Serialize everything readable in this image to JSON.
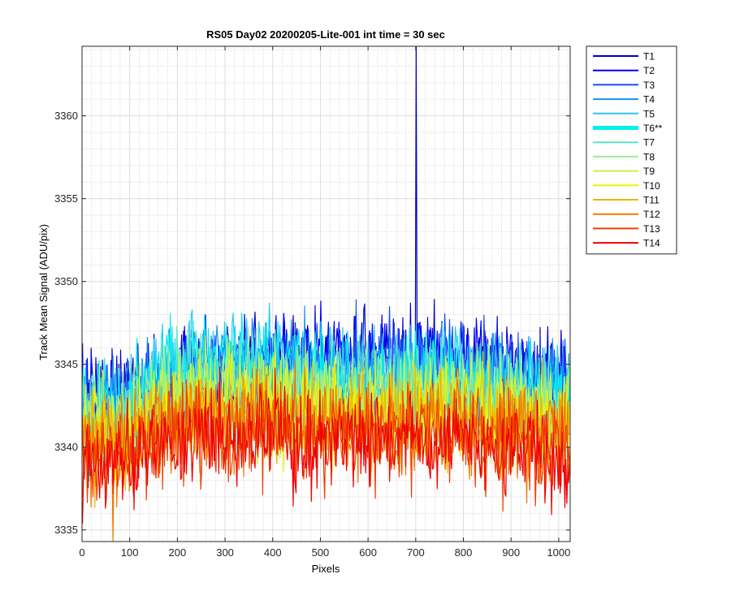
{
  "chart_data": {
    "type": "line",
    "title": "RS05 Day02 20200205-Lite-001 int time = 30 sec",
    "xlabel": "Pixels",
    "ylabel": "Track Mean Signal (ADU/pix)",
    "xlim": [
      0,
      1024
    ],
    "ylim": [
      3334.3,
      3364.2
    ],
    "x_ticks": [
      0,
      100,
      200,
      300,
      400,
      500,
      600,
      700,
      800,
      900,
      1000
    ],
    "y_ticks": [
      3335,
      3340,
      3345,
      3350,
      3355,
      3360
    ],
    "grid": "major and minor",
    "legend_position": "outside-right-top",
    "series": [
      {
        "name": "T1",
        "color": "#0000c8",
        "profile": [
          3343.5,
          3343.0,
          3343.5,
          3344.3,
          3344.8,
          3345.0,
          3344.9,
          3345.0,
          3345.2,
          3345.0,
          3344.7,
          3344.3,
          3344.0
        ],
        "noise": 2.2,
        "spike": {
          "x": 701,
          "y": 3364.2
        }
      },
      {
        "name": "T2",
        "color": "#0000ff",
        "profile": [
          3343.3,
          3342.8,
          3343.4,
          3344.2,
          3344.7,
          3344.9,
          3344.8,
          3344.9,
          3345.1,
          3344.9,
          3344.6,
          3344.2,
          3343.9
        ],
        "noise": 2.2
      },
      {
        "name": "T3",
        "color": "#1a4cf5",
        "profile": [
          3343.0,
          3342.6,
          3343.2,
          3344.0,
          3344.5,
          3344.7,
          3344.6,
          3344.7,
          3344.9,
          3344.7,
          3344.4,
          3344.0,
          3343.7
        ],
        "noise": 2.2
      },
      {
        "name": "T4",
        "color": "#1f8ff0",
        "profile": [
          3342.6,
          3342.2,
          3344.5,
          3344.8,
          3344.8,
          3344.8,
          3344.4,
          3344.3,
          3344.5,
          3344.3,
          3344.1,
          3343.6,
          3343.3
        ],
        "noise": 2.2
      },
      {
        "name": "T5",
        "color": "#28c8f0",
        "profile": [
          3342.2,
          3342.0,
          3345.3,
          3345.4,
          3345.2,
          3345.0,
          3344.5,
          3344.2,
          3344.3,
          3344.2,
          3344.0,
          3343.5,
          3343.0
        ],
        "noise": 2.2
      },
      {
        "name": "T6**",
        "color": "#00f0f0",
        "profile": [
          3342.0,
          3341.8,
          3345.0,
          3345.1,
          3344.9,
          3344.7,
          3344.2,
          3343.9,
          3344.0,
          3343.9,
          3343.7,
          3343.2,
          3342.7
        ],
        "noise": 2.2,
        "highlight": true
      },
      {
        "name": "T7",
        "color": "#5ae6c0",
        "profile": [
          3341.8,
          3341.6,
          3343.6,
          3343.8,
          3343.8,
          3343.8,
          3343.5,
          3343.4,
          3343.6,
          3343.5,
          3343.2,
          3342.8,
          3342.4
        ],
        "noise": 2.2
      },
      {
        "name": "T8",
        "color": "#96f096",
        "profile": [
          3341.5,
          3341.3,
          3343.2,
          3343.4,
          3343.4,
          3343.4,
          3343.1,
          3343.0,
          3343.2,
          3343.1,
          3342.8,
          3342.4,
          3342.0
        ],
        "noise": 2.2
      },
      {
        "name": "T9",
        "color": "#c8f050",
        "profile": [
          3341.2,
          3341.0,
          3342.8,
          3343.0,
          3343.0,
          3343.0,
          3342.7,
          3342.6,
          3342.8,
          3342.7,
          3342.4,
          3342.0,
          3341.6
        ],
        "noise": 2.2
      },
      {
        "name": "T10",
        "color": "#f0f000",
        "profile": [
          3340.9,
          3340.7,
          3342.4,
          3342.6,
          3342.6,
          3342.6,
          3342.3,
          3342.2,
          3342.4,
          3342.3,
          3342.0,
          3341.6,
          3341.2
        ],
        "noise": 2.2
      },
      {
        "name": "T11",
        "color": "#f0b400",
        "profile": [
          3340.5,
          3340.3,
          3341.9,
          3342.1,
          3342.1,
          3342.1,
          3341.8,
          3341.7,
          3341.9,
          3341.8,
          3341.5,
          3341.1,
          3340.7
        ],
        "noise": 2.2
      },
      {
        "name": "T12",
        "color": "#f07800",
        "profile": [
          3340.1,
          3339.9,
          3341.4,
          3341.6,
          3341.6,
          3341.6,
          3341.3,
          3341.2,
          3341.4,
          3341.3,
          3341.0,
          3340.6,
          3340.2
        ],
        "noise": 2.2,
        "dip": {
          "x": 65,
          "y": 3334.3
        }
      },
      {
        "name": "T13",
        "color": "#f03c00",
        "profile": [
          3339.6,
          3339.4,
          3340.8,
          3341.0,
          3341.0,
          3341.0,
          3340.7,
          3340.6,
          3340.8,
          3340.7,
          3340.4,
          3340.0,
          3339.6
        ],
        "noise": 2.2
      },
      {
        "name": "T14",
        "color": "#f00000",
        "profile": [
          3339.2,
          3339.0,
          3340.4,
          3340.6,
          3340.6,
          3340.6,
          3340.3,
          3340.2,
          3340.4,
          3340.3,
          3340.0,
          3339.6,
          3339.2
        ],
        "noise": 2.2
      }
    ]
  }
}
